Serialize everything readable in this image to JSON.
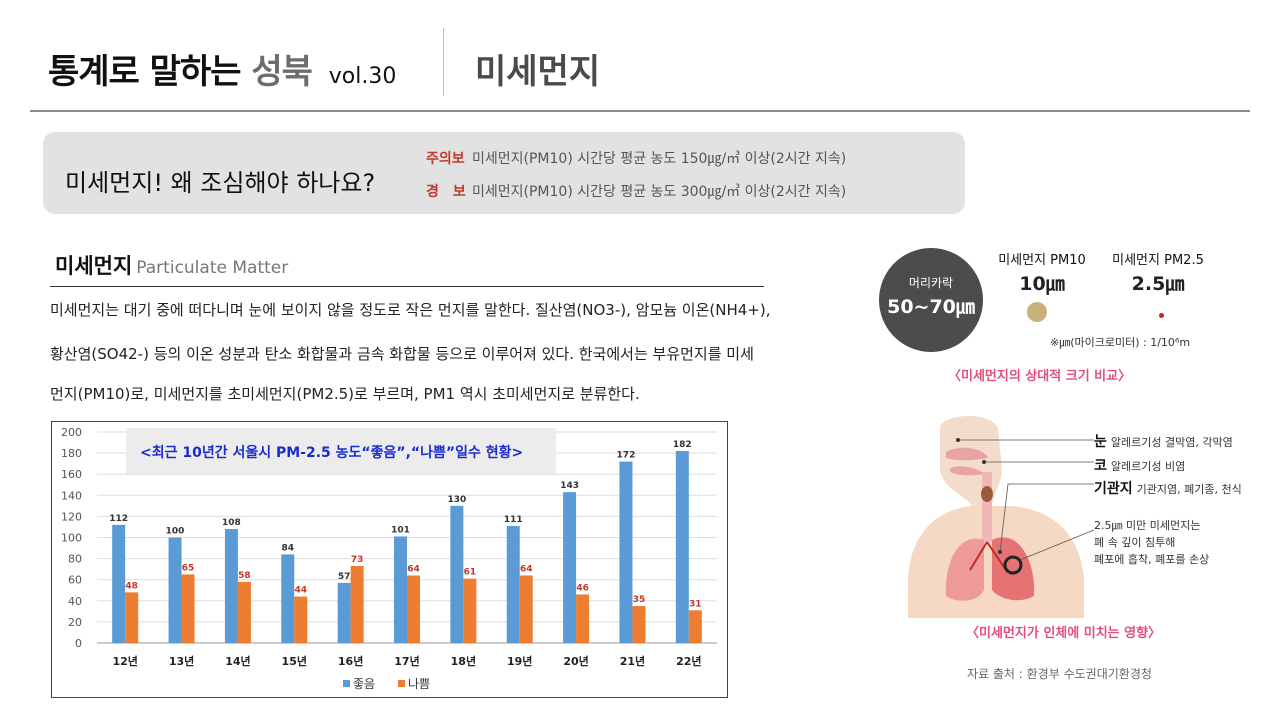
{
  "header": {
    "title_prefix": "통계로 말하는",
    "title_place": "성북",
    "volume": "vol.30",
    "topic": "미세먼지"
  },
  "alert": {
    "question": "미세먼지! 왜 조심해야 하나요?",
    "advisory_label": "주의보",
    "advisory_text": "미세먼지(PM10) 시간당 평균 농도 150㎍/㎥ 이상(2시간 지속)",
    "warning_label": "경　보",
    "warning_text": "미세먼지(PM10) 시간당 평균 농도 300㎍/㎥ 이상(2시간 지속)"
  },
  "section": {
    "title_ko": "미세먼지",
    "title_en": "Particulate Matter",
    "para_line1": "미세먼지는 대기 중에 떠다니며 눈에 보이지 않을 정도로 작은 먼지를 말한다. 질산염(NO3-), 암모늄 이온(NH4+),",
    "para_line2": "황산염(SO42-) 등의 이온 성분과 탄소 화합물과 금속 화합물 등으로 이루어져 있다. 한국에서는 부유먼지를 미세",
    "para_line3": "먼지(PM10)로, 미세먼지를 초미세먼지(PM2.5)로 부르며, PM1 역시 초미세먼지로 분류한다."
  },
  "size_compare": {
    "hair_label": "머리카락",
    "hair_value": "50~70㎛",
    "pm10_label": "미세먼지 PM10",
    "pm10_value": "10㎛",
    "pm25_label": "미세먼지 PM2.5",
    "pm25_value": "2.5㎛",
    "unit_note": "※㎛(마이크로미터) : 1/10⁶m",
    "caption": "〈미세먼지의 상대적 크기 비교〉",
    "colors": {
      "hair": "#4c4c4c",
      "pm10": "#c9b27a",
      "pm25": "#d51a1a"
    }
  },
  "health": {
    "eye_title": "눈",
    "eye_text": "알레르기성 결막염, 각막염",
    "nose_title": "코",
    "nose_text": "알레르기성 비염",
    "bronchi_title": "기관지",
    "bronchi_text": "기관지염, 폐기종, 천식",
    "lung_line1": "2.5㎛ 미만 미세먼지는",
    "lung_line2": "폐 속 깊이 침투해",
    "lung_line3": "폐포에 흡착, 폐포를 손상",
    "caption": "〈미세먼지가 인체에 미치는 영향〉",
    "source": "자료 출처 : 환경부 수도권대기환경청"
  },
  "chart_data": {
    "type": "bar",
    "title": "<최근 10년간 서울시 PM-2.5 농도“좋음”,“나쁨”일수 현황>",
    "categories": [
      "12년",
      "13년",
      "14년",
      "15년",
      "16년",
      "17년",
      "18년",
      "19년",
      "20년",
      "21년",
      "22년"
    ],
    "series": [
      {
        "name": "좋음",
        "color": "#5b9bd5",
        "values": [
          112,
          100,
          108,
          84,
          57,
          101,
          130,
          111,
          143,
          172,
          182
        ]
      },
      {
        "name": "나쁨",
        "color": "#ed7d31",
        "values": [
          48,
          65,
          58,
          44,
          73,
          64,
          61,
          64,
          46,
          35,
          31
        ]
      }
    ],
    "ylim": [
      0,
      200
    ],
    "yticks": [
      0,
      20,
      40,
      60,
      80,
      100,
      120,
      140,
      160,
      180,
      200
    ],
    "grid": true,
    "legend": "bottom"
  }
}
